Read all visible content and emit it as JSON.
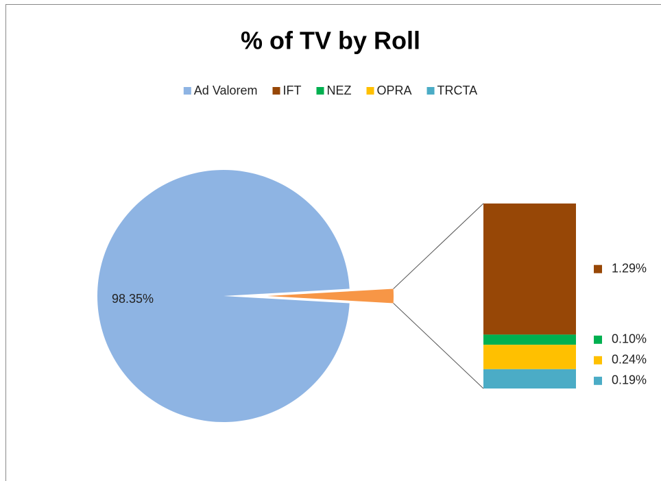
{
  "chart_data": {
    "type": "pie",
    "title": "% of TV by Roll",
    "categories": [
      "Ad Valorem",
      "IFT",
      "NEZ",
      "OPRA",
      "TRCTA"
    ],
    "values": [
      98.35,
      1.29,
      0.1,
      0.24,
      0.19
    ],
    "value_labels": [
      "98.35%",
      "1.29%",
      "0.10%",
      "0.24%",
      "0.19%"
    ],
    "colors": [
      "#8eb4e3",
      "#974706",
      "#00b050",
      "#ffc000",
      "#4bacc6"
    ],
    "other_color": "#f79646",
    "split_last": 4,
    "legend": "top"
  }
}
